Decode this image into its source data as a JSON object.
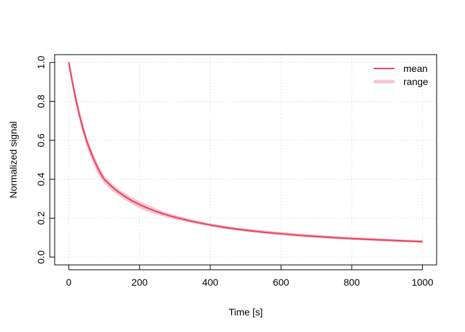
{
  "chart_data": {
    "type": "line",
    "xlabel": "Time [s]",
    "ylabel": "Normalized signal",
    "xlim": [
      0,
      1000
    ],
    "ylim": [
      0,
      1
    ],
    "x_ticks": [
      "0",
      "200",
      "400",
      "600",
      "800",
      "1000"
    ],
    "y_ticks": [
      "0.0",
      "0.2",
      "0.4",
      "0.6",
      "0.8",
      "1.0"
    ],
    "grid": true,
    "legend_position": "top-right",
    "colors": {
      "mean": "#e8485e",
      "range": "#f5c6d1",
      "grid": "#d9d9d9"
    },
    "series": [
      {
        "name": "mean",
        "style": "line",
        "x": [
          0,
          10,
          20,
          30,
          40,
          50,
          60,
          70,
          80,
          90,
          100,
          120,
          140,
          160,
          180,
          200,
          225,
          250,
          275,
          300,
          350,
          400,
          450,
          500,
          550,
          600,
          650,
          700,
          750,
          800,
          850,
          900,
          950,
          1000
        ],
        "y": [
          1.0,
          0.9,
          0.81,
          0.73,
          0.66,
          0.6,
          0.55,
          0.505,
          0.465,
          0.43,
          0.4,
          0.365,
          0.335,
          0.31,
          0.288,
          0.27,
          0.25,
          0.233,
          0.218,
          0.205,
          0.183,
          0.165,
          0.15,
          0.138,
          0.128,
          0.12,
          0.112,
          0.106,
          0.1,
          0.095,
          0.091,
          0.087,
          0.083,
          0.08
        ]
      },
      {
        "name": "range",
        "style": "band",
        "x": [
          0,
          10,
          20,
          30,
          40,
          50,
          60,
          70,
          80,
          90,
          100,
          120,
          140,
          160,
          180,
          200,
          225,
          250,
          275,
          300,
          350,
          400,
          450,
          500,
          550,
          600,
          650,
          700,
          750,
          800,
          850,
          900,
          950,
          1000
        ],
        "ymin": [
          1.0,
          0.895,
          0.8,
          0.72,
          0.648,
          0.585,
          0.532,
          0.487,
          0.447,
          0.412,
          0.385,
          0.35,
          0.322,
          0.297,
          0.275,
          0.255,
          0.237,
          0.224,
          0.21,
          0.198,
          0.179,
          0.162,
          0.147,
          0.135,
          0.125,
          0.117,
          0.109,
          0.103,
          0.098,
          0.093,
          0.089,
          0.085,
          0.081,
          0.078
        ],
        "ymax": [
          1.0,
          0.905,
          0.815,
          0.735,
          0.668,
          0.61,
          0.562,
          0.518,
          0.478,
          0.443,
          0.41,
          0.375,
          0.345,
          0.322,
          0.3,
          0.283,
          0.262,
          0.242,
          0.226,
          0.212,
          0.188,
          0.169,
          0.154,
          0.142,
          0.133,
          0.125,
          0.117,
          0.11,
          0.104,
          0.099,
          0.094,
          0.09,
          0.086,
          0.082
        ]
      }
    ]
  }
}
